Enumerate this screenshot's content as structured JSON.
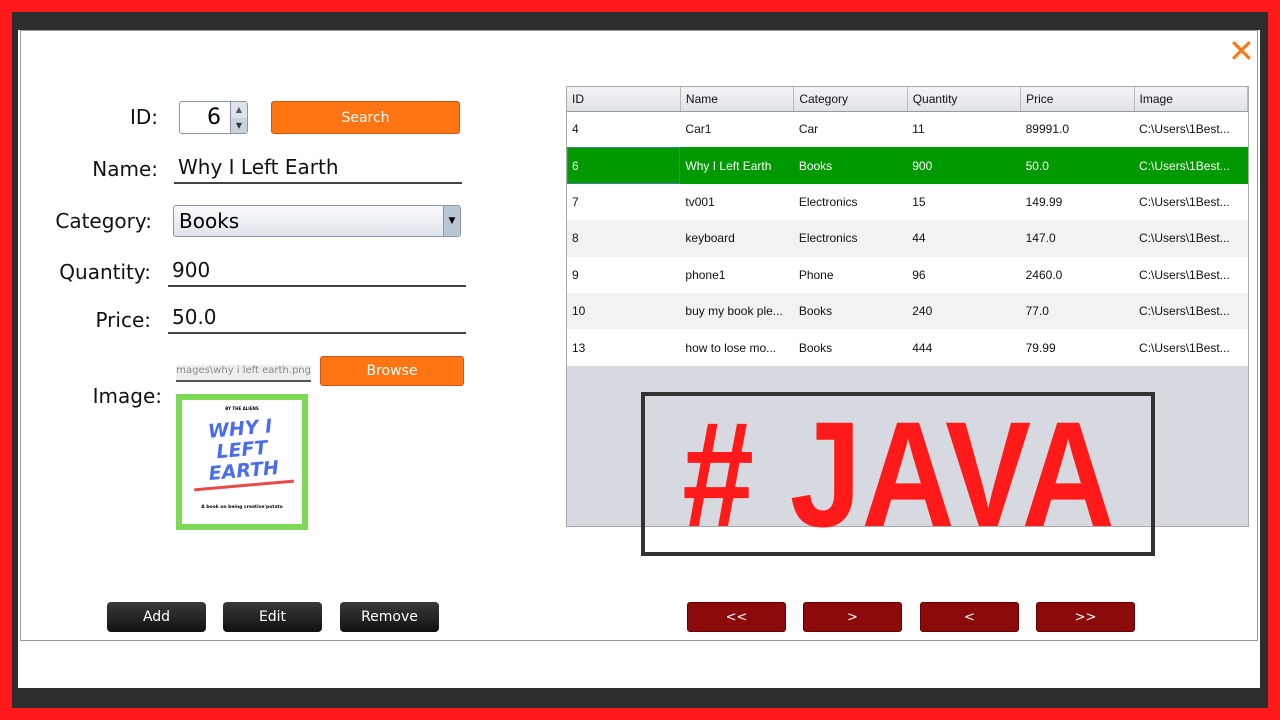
{
  "form": {
    "id_label": "ID:",
    "id_value": "6",
    "search_label": "Search",
    "name_label": "Name:",
    "name_value": "Why I Left Earth",
    "category_label": "Category:",
    "category_value": "Books",
    "quantity_label": "Quantity:",
    "quantity_value": "900",
    "price_label": "Price:",
    "price_value": "50.0",
    "image_label": "Image:",
    "image_path": "p\\images\\why i left earth.png",
    "browse_label": "Browse",
    "cover": {
      "top": "BY THE ALIENS",
      "title1": "WHY I",
      "title2": "LEFT",
      "title3": "EARTH",
      "subtitle": "A book on being creative'potato"
    }
  },
  "actions": {
    "add": "Add",
    "edit": "Edit",
    "remove": "Remove"
  },
  "nav": {
    "first": "<<",
    "next": ">",
    "prev": "<",
    "last": ">>"
  },
  "table": {
    "columns": [
      "ID",
      "Name",
      "Category",
      "Quantity",
      "Price",
      "Image"
    ],
    "selected_index": 1,
    "rows": [
      [
        "4",
        "Car1",
        "Car",
        "11",
        "89991.0",
        "C:\\Users\\1Best..."
      ],
      [
        "6",
        "Why I Left Earth",
        "Books",
        "900",
        "50.0",
        "C:\\Users\\1Best..."
      ],
      [
        "7",
        "tv001",
        "Electronics",
        "15",
        "149.99",
        "C:\\Users\\1Best..."
      ],
      [
        "8",
        "keyboard",
        "Electronics",
        "44",
        "147.0",
        "C:\\Users\\1Best..."
      ],
      [
        "9",
        "phone1",
        "Phone",
        "96",
        "2460.0",
        "C:\\Users\\1Best..."
      ],
      [
        "10",
        "buy my book ple...",
        "Books",
        "240",
        "77.0",
        "C:\\Users\\1Best..."
      ],
      [
        "13",
        "how to lose mo...",
        "Books",
        "444",
        "79.99",
        "C:\\Users\\1Best..."
      ]
    ]
  },
  "overlay": {
    "text": "# JAVA"
  },
  "colors": {
    "accent_orange": "#ff7413",
    "selection_green": "#009900",
    "nav_red": "#8c0a0a",
    "border_red": "#ff1a1a"
  }
}
